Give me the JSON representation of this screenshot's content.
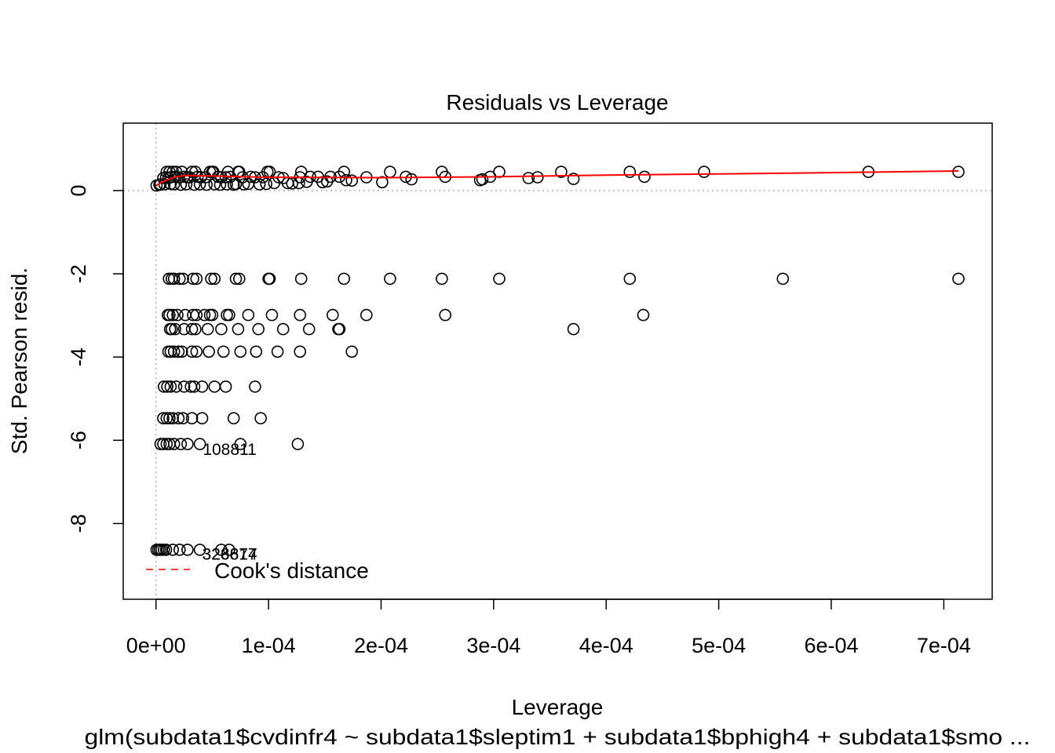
{
  "chart_data": {
    "type": "scatter",
    "title": "Residuals vs Leverage",
    "xlabel": "Leverage",
    "ylabel": "Std. Pearson resid.",
    "subtitle": "glm(subdata1$cvdinfr4 ~ subdata1$sleptim1 + subdata1$bphigh4 + subdata1$smo ...",
    "xlim": [
      -2.91e-05,
      0.000743
    ],
    "ylim": [
      -9.82,
      1.62
    ],
    "x_ticks": [
      0,
      0.0001,
      0.0002,
      0.0003,
      0.0004,
      0.0005,
      0.0006,
      0.0007
    ],
    "x_tick_labels": [
      "0e+00",
      "1e-04",
      "2e-04",
      "3e-04",
      "4e-04",
      "5e-04",
      "6e-04",
      "7e-04"
    ],
    "y_ticks": [
      0,
      -2,
      -4,
      -6,
      -8
    ],
    "y_tick_labels": [
      "0",
      "-2",
      "-4",
      "-6",
      "-8"
    ],
    "reference_lines": {
      "x": 0,
      "y": 0,
      "color": "#b3b3b3",
      "style": "dotted"
    },
    "grid": false,
    "legend": {
      "position": "bottom-left",
      "entries": [
        {
          "label": "Cook's distance",
          "color": "#ff0000",
          "style": "dashed"
        }
      ]
    },
    "smooth_line": {
      "color": "#ff0000",
      "x": [
        0,
        5e-06,
        1e-05,
        1.5e-05,
        2e-05,
        2.5e-05,
        3e-05,
        5e-05,
        0.0001,
        0.0002,
        0.0003,
        0.0004,
        0.0005,
        0.0006,
        0.000713
      ],
      "y": [
        0.12,
        0.2,
        0.26,
        0.31,
        0.34,
        0.36,
        0.36,
        0.35,
        0.32,
        0.31,
        0.33,
        0.37,
        0.4,
        0.43,
        0.47
      ]
    },
    "point_labels": [
      {
        "text": "108811",
        "x": 6.55e-05,
        "y": -6.2
      },
      {
        "text": "326874",
        "x": 6.55e-05,
        "y": -8.72
      },
      {
        "text": "323617",
        "x": 6.55e-05,
        "y": -8.72
      }
    ],
    "series": [
      {
        "name": "y≈0.45",
        "points": [
          [
            9.5e-06,
            0.45
          ],
          [
            1.2e-05,
            0.45
          ],
          [
            1.5e-05,
            0.45
          ],
          [
            1.8e-05,
            0.45
          ],
          [
            2.3e-05,
            0.45
          ],
          [
            3.2e-05,
            0.45
          ],
          [
            3.5e-05,
            0.45
          ],
          [
            4.8e-05,
            0.45
          ],
          [
            5e-05,
            0.45
          ],
          [
            5.1e-05,
            0.45
          ],
          [
            6.4e-05,
            0.45
          ],
          [
            7.3e-05,
            0.45
          ],
          [
            7.4e-05,
            0.45
          ],
          [
            9.9e-05,
            0.45
          ],
          [
            0.000101,
            0.45
          ],
          [
            0.000129,
            0.45
          ],
          [
            0.000167,
            0.45
          ],
          [
            0.000208,
            0.45
          ],
          [
            0.000254,
            0.45
          ],
          [
            0.000305,
            0.45
          ],
          [
            0.00036,
            0.45
          ],
          [
            0.000421,
            0.45
          ],
          [
            0.000487,
            0.45
          ],
          [
            0.000633,
            0.45
          ],
          [
            0.000713,
            0.45
          ]
        ]
      },
      {
        "name": "y≈0.32",
        "points": [
          [
            6.5e-06,
            0.3
          ],
          [
            9e-06,
            0.32
          ],
          [
            1.1e-05,
            0.3
          ],
          [
            1.3e-05,
            0.32
          ],
          [
            1.7e-05,
            0.33
          ],
          [
            2e-05,
            0.32
          ],
          [
            2.5e-05,
            0.33
          ],
          [
            2.8e-05,
            0.32
          ],
          [
            3e-05,
            0.32
          ],
          [
            3.7e-05,
            0.33
          ],
          [
            4e-05,
            0.32
          ],
          [
            4.4e-05,
            0.32
          ],
          [
            5.5e-05,
            0.33
          ],
          [
            5.8e-05,
            0.32
          ],
          [
            6.2e-05,
            0.32
          ],
          [
            6.6e-05,
            0.33
          ],
          [
            7.7e-05,
            0.32
          ],
          [
            8.4e-05,
            0.33
          ],
          [
            8.8e-05,
            0.32
          ],
          [
            9.5e-05,
            0.32
          ],
          [
            0.000109,
            0.32
          ],
          [
            0.000113,
            0.3
          ],
          [
            0.000128,
            0.32
          ],
          [
            0.000137,
            0.33
          ],
          [
            0.000144,
            0.33
          ],
          [
            0.000155,
            0.33
          ],
          [
            0.000163,
            0.33
          ],
          [
            0.000187,
            0.32
          ],
          [
            0.000222,
            0.33
          ],
          [
            0.000227,
            0.27
          ],
          [
            0.000257,
            0.33
          ],
          [
            0.00029,
            0.27
          ],
          [
            0.000297,
            0.33
          ],
          [
            0.000331,
            0.3
          ],
          [
            0.000339,
            0.32
          ],
          [
            0.000371,
            0.28
          ],
          [
            0.000434,
            0.33
          ]
        ]
      },
      {
        "name": "y≈0.15",
        "points": [
          [
            5e-07,
            0.12
          ],
          [
            3e-06,
            0.14
          ],
          [
            4e-06,
            0.15
          ],
          [
            7.5e-06,
            0.15
          ],
          [
            1.3e-05,
            0.16
          ],
          [
            1.6e-05,
            0.15
          ],
          [
            2.2e-05,
            0.14
          ],
          [
            2.7e-05,
            0.15
          ],
          [
            3.4e-05,
            0.14
          ],
          [
            3.9e-05,
            0.15
          ],
          [
            4.5e-05,
            0.14
          ],
          [
            5.2e-05,
            0.15
          ],
          [
            5.7e-05,
            0.14
          ],
          [
            6.3e-05,
            0.15
          ],
          [
            6.9e-05,
            0.14
          ],
          [
            7.1e-05,
            0.16
          ],
          [
            7.8e-05,
            0.15
          ],
          [
            8.2e-05,
            0.16
          ],
          [
            9.2e-05,
            0.15
          ],
          [
            9.8e-05,
            0.16
          ],
          [
            0.000105,
            0.18
          ],
          [
            0.000117,
            0.18
          ],
          [
            0.000121,
            0.17
          ],
          [
            0.000127,
            0.18
          ],
          [
            0.000134,
            0.21
          ],
          [
            0.000148,
            0.2
          ],
          [
            0.000152,
            0.22
          ],
          [
            0.000169,
            0.25
          ],
          [
            0.000174,
            0.24
          ],
          [
            0.000201,
            0.2
          ],
          [
            0.000288,
            0.25
          ]
        ]
      },
      {
        "name": "y≈-2.12",
        "points": [
          [
            1.15e-05,
            -2.12
          ],
          [
            1.4e-05,
            -2.12
          ],
          [
            1.6e-05,
            -2.12
          ],
          [
            2.1e-05,
            -2.12
          ],
          [
            2.4e-05,
            -2.12
          ],
          [
            3.3e-05,
            -2.12
          ],
          [
            3.6e-05,
            -2.12
          ],
          [
            4.9e-05,
            -2.12
          ],
          [
            5.2e-05,
            -2.12
          ],
          [
            7.1e-05,
            -2.12
          ],
          [
            7.4e-05,
            -2.12
          ],
          [
            0.0001,
            -2.12
          ],
          [
            0.000101,
            -2.12
          ],
          [
            0.000129,
            -2.12
          ],
          [
            0.000167,
            -2.12
          ],
          [
            0.000208,
            -2.12
          ],
          [
            0.000254,
            -2.12
          ],
          [
            0.000305,
            -2.12
          ],
          [
            0.000421,
            -2.12
          ],
          [
            0.000557,
            -2.12
          ],
          [
            0.000713,
            -2.12
          ]
        ]
      },
      {
        "name": "y≈-2.99",
        "points": [
          [
            1.05e-05,
            -2.99
          ],
          [
            1.2e-05,
            -2.99
          ],
          [
            1.5e-05,
            -2.99
          ],
          [
            1.9e-05,
            -2.99
          ],
          [
            2.6e-05,
            -2.99
          ],
          [
            3.3e-05,
            -2.99
          ],
          [
            3.6e-05,
            -2.99
          ],
          [
            4.3e-05,
            -2.99
          ],
          [
            4.8e-05,
            -2.99
          ],
          [
            5e-05,
            -2.99
          ],
          [
            6.3e-05,
            -2.99
          ],
          [
            6.5e-05,
            -2.99
          ],
          [
            8.2e-05,
            -2.99
          ],
          [
            0.000103,
            -2.99
          ],
          [
            0.000128,
            -2.99
          ],
          [
            0.000157,
            -2.99
          ],
          [
            0.000187,
            -2.99
          ],
          [
            0.000257,
            -2.99
          ],
          [
            0.000433,
            -2.99
          ]
        ]
      },
      {
        "name": "y≈-3.33",
        "points": [
          [
            1.25e-05,
            -3.33
          ],
          [
            1.4e-05,
            -3.33
          ],
          [
            1.7e-05,
            -3.33
          ],
          [
            2.5e-05,
            -3.33
          ],
          [
            3.2e-05,
            -3.33
          ],
          [
            3.5e-05,
            -3.33
          ],
          [
            4.6e-05,
            -3.33
          ],
          [
            5.8e-05,
            -3.33
          ],
          [
            7.3e-05,
            -3.33
          ],
          [
            9.1e-05,
            -3.33
          ],
          [
            0.000113,
            -3.33
          ],
          [
            0.000136,
            -3.33
          ],
          [
            0.000162,
            -3.33
          ],
          [
            0.000163,
            -3.33
          ],
          [
            0.000371,
            -3.33
          ]
        ]
      },
      {
        "name": "y≈-3.87",
        "points": [
          [
            1.1e-05,
            -3.87
          ],
          [
            1.3e-05,
            -3.87
          ],
          [
            1.6e-05,
            -3.87
          ],
          [
            2e-05,
            -3.87
          ],
          [
            2.3e-05,
            -3.87
          ],
          [
            3.2e-05,
            -3.87
          ],
          [
            3.6e-05,
            -3.87
          ],
          [
            4.7e-05,
            -3.87
          ],
          [
            6e-05,
            -3.87
          ],
          [
            7.5e-05,
            -3.87
          ],
          [
            8.9e-05,
            -3.87
          ],
          [
            0.000108,
            -3.87
          ],
          [
            0.000128,
            -3.87
          ],
          [
            0.000174,
            -3.87
          ]
        ]
      },
      {
        "name": "y≈-4.71",
        "points": [
          [
            7e-06,
            -4.71
          ],
          [
            1e-05,
            -4.71
          ],
          [
            1.3e-05,
            -4.71
          ],
          [
            1.8e-05,
            -4.71
          ],
          [
            2.5e-05,
            -4.71
          ],
          [
            3.1e-05,
            -4.71
          ],
          [
            3.4e-05,
            -4.71
          ],
          [
            4.1e-05,
            -4.71
          ],
          [
            5.2e-05,
            -4.71
          ],
          [
            6.2e-05,
            -4.71
          ],
          [
            8.8e-05,
            -4.71
          ]
        ]
      },
      {
        "name": "y≈-5.47",
        "points": [
          [
            6.5e-06,
            -5.47
          ],
          [
            9.5e-06,
            -5.47
          ],
          [
            1.2e-05,
            -5.47
          ],
          [
            1.5e-05,
            -5.47
          ],
          [
            2e-05,
            -5.47
          ],
          [
            2.4e-05,
            -5.47
          ],
          [
            3.2e-05,
            -5.47
          ],
          [
            4.1e-05,
            -5.47
          ],
          [
            6.9e-05,
            -5.47
          ],
          [
            9.3e-05,
            -5.47
          ]
        ]
      },
      {
        "name": "y≈-6.09",
        "points": [
          [
            4e-06,
            -6.09
          ],
          [
            6.5e-06,
            -6.09
          ],
          [
            9.5e-06,
            -6.09
          ],
          [
            1.2e-05,
            -6.09
          ],
          [
            1.6e-05,
            -6.09
          ],
          [
            2.2e-05,
            -6.09
          ],
          [
            2.8e-05,
            -6.09
          ],
          [
            3.9e-05,
            -6.09
          ],
          [
            7.5e-05,
            -6.09
          ],
          [
            0.000126,
            -6.09
          ]
        ]
      },
      {
        "name": "y≈-8.63",
        "points": [
          [
            5e-07,
            -8.63
          ],
          [
            2e-06,
            -8.63
          ],
          [
            3.5e-06,
            -8.63
          ],
          [
            5e-06,
            -8.63
          ],
          [
            7e-06,
            -8.63
          ],
          [
            9e-06,
            -8.63
          ],
          [
            1.5e-05,
            -8.63
          ],
          [
            2.1e-05,
            -8.63
          ],
          [
            2.8e-05,
            -8.63
          ],
          [
            3.9e-05,
            -8.63
          ],
          [
            5.8e-05,
            -8.63
          ],
          [
            6.5e-05,
            -8.63
          ]
        ]
      }
    ]
  }
}
